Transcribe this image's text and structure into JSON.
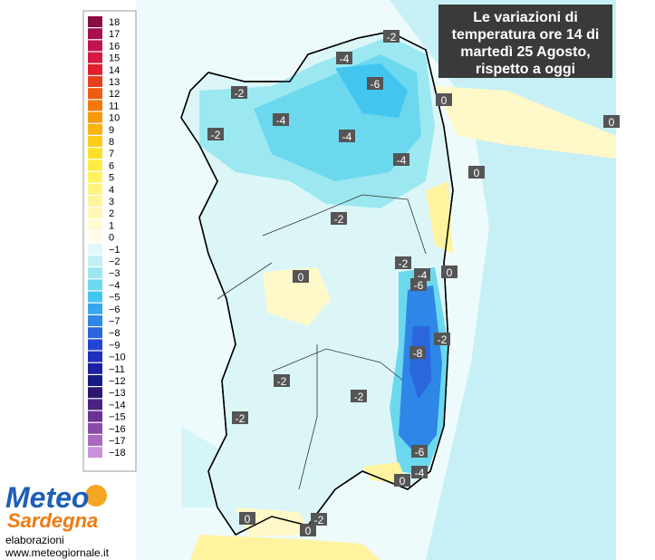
{
  "header": {
    "title": [
      "Le variazioni di",
      "temperatura ore 14 di",
      "martedì 25 Agosto,",
      "rispetto a oggi"
    ]
  },
  "legend": [
    {
      "label": "18",
      "color": "#8a0c45"
    },
    {
      "label": "17",
      "color": "#a8104d"
    },
    {
      "label": "16",
      "color": "#c01452"
    },
    {
      "label": "15",
      "color": "#d41a40"
    },
    {
      "label": "14",
      "color": "#e0202c"
    },
    {
      "label": "13",
      "color": "#e8401c"
    },
    {
      "label": "12",
      "color": "#f05a12"
    },
    {
      "label": "11",
      "color": "#f4780c"
    },
    {
      "label": "10",
      "color": "#f7980a"
    },
    {
      "label": "9",
      "color": "#f9b40e"
    },
    {
      "label": "8",
      "color": "#fbcc18"
    },
    {
      "label": "7",
      "color": "#fde02a"
    },
    {
      "label": "6",
      "color": "#feec44"
    },
    {
      "label": "5",
      "color": "#fff260"
    },
    {
      "label": "4",
      "color": "#fff47e"
    },
    {
      "label": "3",
      "color": "#fff69c"
    },
    {
      "label": "2",
      "color": "#fff8b8"
    },
    {
      "label": "1",
      "color": "#fffad2"
    },
    {
      "label": "0",
      "color": "#fffde8"
    },
    {
      "label": "−1",
      "color": "#e2f8f8"
    },
    {
      "label": "−2",
      "color": "#c2f0f5"
    },
    {
      "label": "−3",
      "color": "#9ce8f0"
    },
    {
      "label": "−4",
      "color": "#6cd8ee"
    },
    {
      "label": "−5",
      "color": "#42c6f0"
    },
    {
      "label": "−6",
      "color": "#38a6ec"
    },
    {
      "label": "−7",
      "color": "#2e86e6"
    },
    {
      "label": "−8",
      "color": "#2a66de"
    },
    {
      "label": "−9",
      "color": "#2244d4"
    },
    {
      "label": "−10",
      "color": "#1e30bc"
    },
    {
      "label": "−11",
      "color": "#1c22a2"
    },
    {
      "label": "−12",
      "color": "#1a1a86"
    },
    {
      "label": "−13",
      "color": "#2a1870"
    },
    {
      "label": "−14",
      "color": "#4a2282"
    },
    {
      "label": "−15",
      "color": "#6a3292"
    },
    {
      "label": "−16",
      "color": "#8a4aa8"
    },
    {
      "label": "−17",
      "color": "#a86ac0"
    },
    {
      "label": "−18",
      "color": "#c892d8"
    }
  ],
  "map_labels": [
    "-2",
    "-4",
    "-2",
    "-6",
    "0",
    "0",
    "-4",
    "-2",
    "-4",
    "-4",
    "0",
    "-2",
    "-2",
    "-4",
    "-6",
    "0",
    "0",
    "-2",
    "-8",
    "-2",
    "-2",
    "-2",
    "-6",
    "-4",
    "0",
    "0",
    "-2",
    "0"
  ],
  "logo": {
    "line1": "Meteo",
    "line2": "Sardegna"
  },
  "footer": {
    "credit": "elaborazioni",
    "url": "www.meteogiornale.it"
  }
}
